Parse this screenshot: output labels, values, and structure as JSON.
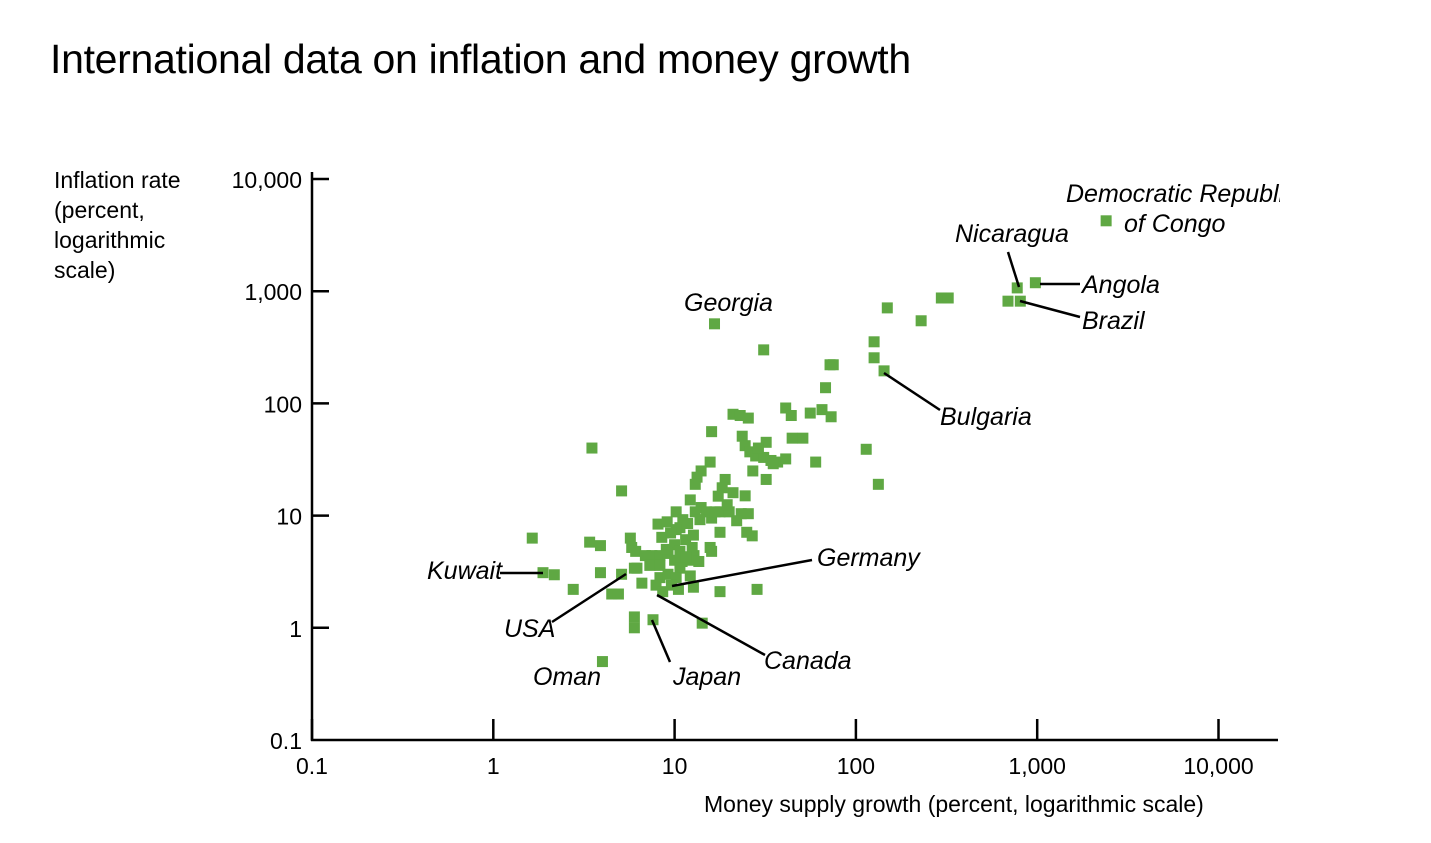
{
  "chart_data": {
    "type": "scatter",
    "title": "International data on inflation and money growth",
    "ylabel_lines": [
      "Inflation rate",
      "(percent,",
      "logarithmic",
      "scale)"
    ],
    "xlabel": "Money supply growth (percent, logarithmic scale)",
    "x_scale": "log",
    "y_scale": "log",
    "xlim": [
      0.1,
      10000
    ],
    "ylim": [
      0.1,
      10000
    ],
    "x_ticks": [
      0.1,
      1,
      10,
      100,
      1000,
      10000
    ],
    "x_tick_labels": [
      "0.1",
      "1",
      "10",
      "100",
      "1,000",
      "10,000"
    ],
    "y_ticks": [
      0.1,
      1,
      10,
      100,
      1000,
      10000
    ],
    "y_tick_labels": [
      "0.1",
      "1",
      "10",
      "100",
      "1,000",
      "10,000"
    ],
    "grid": false,
    "marker_color": "#5fa843",
    "annotations": [
      {
        "text": "Democratic Republic",
        "text2": "of Congo",
        "x": 2400,
        "y": 4240
      },
      {
        "text": "Nicaragua",
        "x": 776,
        "y": 1070
      },
      {
        "text": "Angola",
        "x": 977,
        "y": 1190
      },
      {
        "text": "Brazil",
        "x": 807,
        "y": 815
      },
      {
        "text": "Georgia",
        "x": 16.6,
        "y": 512
      },
      {
        "text": "Bulgaria",
        "x": 143,
        "y": 195
      },
      {
        "text": "Kuwait",
        "x": 1.88,
        "y": 3.1
      },
      {
        "text": "USA",
        "x": 6.0,
        "y": 3.4
      },
      {
        "text": "Germany",
        "x": 10,
        "y": 2.8
      },
      {
        "text": "Canada",
        "x": 7.9,
        "y": 2.4
      },
      {
        "text": "Japan",
        "x": 7.6,
        "y": 1.18
      },
      {
        "text": "Oman",
        "x": 4.0,
        "y": 0.5
      }
    ],
    "points": [
      [
        2400,
        4240
      ],
      [
        977,
        1190
      ],
      [
        776,
        1070
      ],
      [
        690,
        815
      ],
      [
        807,
        815
      ],
      [
        16.6,
        512
      ],
      [
        143,
        195
      ],
      [
        296,
        870
      ],
      [
        323,
        870
      ],
      [
        149,
        710
      ],
      [
        229,
        545
      ],
      [
        31,
        300
      ],
      [
        126,
        354
      ],
      [
        126,
        255
      ],
      [
        72,
        221
      ],
      [
        75,
        221
      ],
      [
        68,
        138
      ],
      [
        41,
        91
      ],
      [
        44,
        78
      ],
      [
        56,
        82
      ],
      [
        65,
        88
      ],
      [
        73,
        76
      ],
      [
        21,
        80
      ],
      [
        23,
        78
      ],
      [
        25.5,
        74
      ],
      [
        16,
        56
      ],
      [
        3.5,
        40
      ],
      [
        23.6,
        51
      ],
      [
        24.5,
        42
      ],
      [
        32,
        45
      ],
      [
        114,
        39
      ],
      [
        44.5,
        49
      ],
      [
        51,
        49
      ],
      [
        26,
        37
      ],
      [
        28,
        34
      ],
      [
        31,
        33
      ],
      [
        34,
        31
      ],
      [
        37,
        30
      ],
      [
        41,
        32
      ],
      [
        32,
        21
      ],
      [
        60,
        30
      ],
      [
        133,
        19
      ],
      [
        15.7,
        30
      ],
      [
        14,
        25
      ],
      [
        13.3,
        22
      ],
      [
        13,
        19
      ],
      [
        19,
        21
      ],
      [
        18.3,
        17.7
      ],
      [
        17.4,
        14.9
      ],
      [
        24.5,
        15
      ],
      [
        5.1,
        16.6
      ],
      [
        14,
        11.8
      ],
      [
        16,
        9.5
      ],
      [
        15,
        10.8
      ],
      [
        12.2,
        13.8
      ],
      [
        13,
        10.8
      ],
      [
        10.2,
        10.8
      ],
      [
        11.1,
        9.2
      ],
      [
        10.7,
        7.8
      ],
      [
        16.7,
        10.8
      ],
      [
        17.8,
        10.8
      ],
      [
        20,
        10.8
      ],
      [
        23.3,
        10.4
      ],
      [
        25.5,
        10.4
      ],
      [
        8.1,
        8.4
      ],
      [
        9.1,
        8.8
      ],
      [
        10.2,
        7.5
      ],
      [
        11.5,
        6.1
      ],
      [
        17.8,
        7.1
      ],
      [
        25,
        7.1
      ],
      [
        26.8,
        6.6
      ],
      [
        15.7,
        5.2
      ],
      [
        16,
        4.8
      ],
      [
        1.64,
        6.3
      ],
      [
        3.4,
        5.8
      ],
      [
        3.9,
        5.4
      ],
      [
        5.7,
        6.3
      ],
      [
        5.8,
        5.2
      ],
      [
        8.5,
        6.4
      ],
      [
        12.7,
        6.7
      ],
      [
        10,
        5.5
      ],
      [
        10.7,
        4.8
      ],
      [
        12.5,
        5.2
      ],
      [
        12.8,
        4.4
      ],
      [
        6.1,
        4.8
      ],
      [
        6.9,
        4.4
      ],
      [
        7.5,
        4.4
      ],
      [
        8.3,
        4.4
      ],
      [
        9.2,
        4.6
      ],
      [
        11,
        3.9
      ],
      [
        12.5,
        4.0
      ],
      [
        13.6,
        3.9
      ],
      [
        10,
        4.0
      ],
      [
        7.3,
        3.6
      ],
      [
        6.2,
        3.4
      ],
      [
        8.3,
        3.6
      ],
      [
        10.7,
        3.4
      ],
      [
        1.88,
        3.1
      ],
      [
        2.17,
        2.97
      ],
      [
        3.9,
        3.1
      ],
      [
        5.1,
        3.0
      ],
      [
        6.0,
        3.4
      ],
      [
        8.3,
        2.8
      ],
      [
        9.2,
        3.0
      ],
      [
        10.2,
        2.8
      ],
      [
        12.2,
        2.9
      ],
      [
        2.76,
        2.2
      ],
      [
        4.5,
        2.0
      ],
      [
        4.9,
        2.0
      ],
      [
        6.6,
        2.5
      ],
      [
        7.9,
        2.4
      ],
      [
        9.6,
        2.4
      ],
      [
        8.6,
        2.1
      ],
      [
        10.5,
        2.2
      ],
      [
        12.7,
        2.3
      ],
      [
        17.8,
        2.1
      ],
      [
        28.5,
        2.2
      ],
      [
        6.0,
        1.25
      ],
      [
        6.0,
        1.0
      ],
      [
        7.6,
        1.18
      ],
      [
        14.2,
        1.1
      ],
      [
        4.0,
        0.5
      ],
      [
        9.5,
        7.0
      ],
      [
        11.8,
        8.5
      ],
      [
        13.8,
        9.2
      ],
      [
        19.5,
        12.5
      ],
      [
        22,
        9.0
      ],
      [
        21,
        16
      ],
      [
        27,
        25
      ],
      [
        35,
        29
      ],
      [
        29,
        40
      ],
      [
        11.6,
        4.3
      ],
      [
        9.0,
        5.0
      ]
    ]
  }
}
